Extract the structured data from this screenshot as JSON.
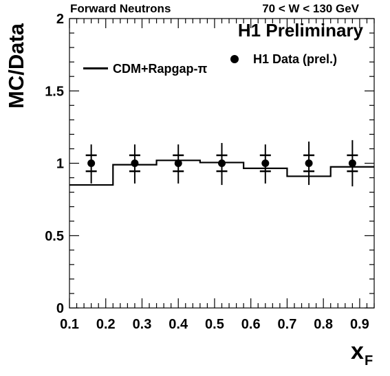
{
  "header": {
    "left": "Forward Neutrons",
    "right": "70 < W < 130 GeV"
  },
  "preliminary_label": "H1 Preliminary",
  "colors": {
    "foreground": "#000000",
    "background": "#ffffff"
  },
  "chart_data": {
    "type": "line",
    "title": "",
    "xlabel": "x",
    "xlabel_subscript": "F",
    "ylabel": "MC/Data",
    "xlim": [
      0.1,
      0.94
    ],
    "ylim": [
      0,
      2
    ],
    "x_ticks": [
      0.1,
      0.2,
      0.3,
      0.4,
      0.5,
      0.6,
      0.7,
      0.8,
      0.9
    ],
    "x_tick_labels": [
      "0.1",
      "0.2",
      "0.3",
      "0.4",
      "0.5",
      "0.6",
      "0.7",
      "0.8",
      "0.9"
    ],
    "y_ticks": [
      0,
      0.5,
      1,
      1.5,
      2
    ],
    "y_tick_labels": [
      "0",
      "0.5",
      "1",
      "1.5",
      "2"
    ],
    "grid": false,
    "legend_position": "top",
    "series": [
      {
        "name": "CDM+Rapgap-π",
        "kind": "step",
        "bin_edges": [
          0.1,
          0.22,
          0.34,
          0.46,
          0.58,
          0.7,
          0.82,
          0.94
        ],
        "values": [
          0.85,
          0.99,
          1.02,
          1.005,
          0.965,
          0.91,
          0.975
        ]
      },
      {
        "name": "H1 Data (prel.)",
        "kind": "points",
        "x": [
          0.16,
          0.28,
          0.4,
          0.52,
          0.64,
          0.76,
          0.88
        ],
        "y": [
          1.0,
          1.0,
          1.0,
          1.0,
          1.0,
          1.0,
          1.0
        ],
        "stat_err": [
          0.055,
          0.055,
          0.055,
          0.055,
          0.055,
          0.055,
          0.055
        ],
        "total_err_up": [
          0.13,
          0.13,
          0.13,
          0.14,
          0.13,
          0.15,
          0.16
        ],
        "total_err_down": [
          0.14,
          0.14,
          0.14,
          0.15,
          0.14,
          0.15,
          0.16
        ]
      }
    ]
  }
}
